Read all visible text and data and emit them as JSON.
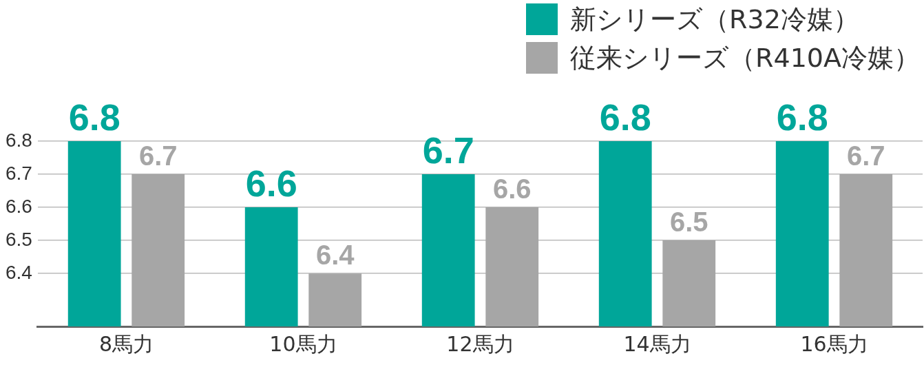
{
  "chart_data": {
    "type": "bar",
    "categories": [
      "8馬力",
      "10馬力",
      "12馬力",
      "14馬力",
      "16馬力"
    ],
    "series": [
      {
        "name": "新シリーズ（R32冷媒）",
        "color": "#00a699",
        "values": [
          6.8,
          6.6,
          6.7,
          6.8,
          6.8
        ]
      },
      {
        "name": "従来シリーズ（R410A冷媒）",
        "color": "#a6a6a6",
        "values": [
          6.7,
          6.4,
          6.6,
          6.5,
          6.7
        ]
      }
    ],
    "ylim": [
      6.24,
      6.8
    ],
    "yticks": [
      6.4,
      6.5,
      6.6,
      6.7,
      6.8
    ],
    "grid": "y",
    "legend": "top right",
    "data_labels": true
  }
}
